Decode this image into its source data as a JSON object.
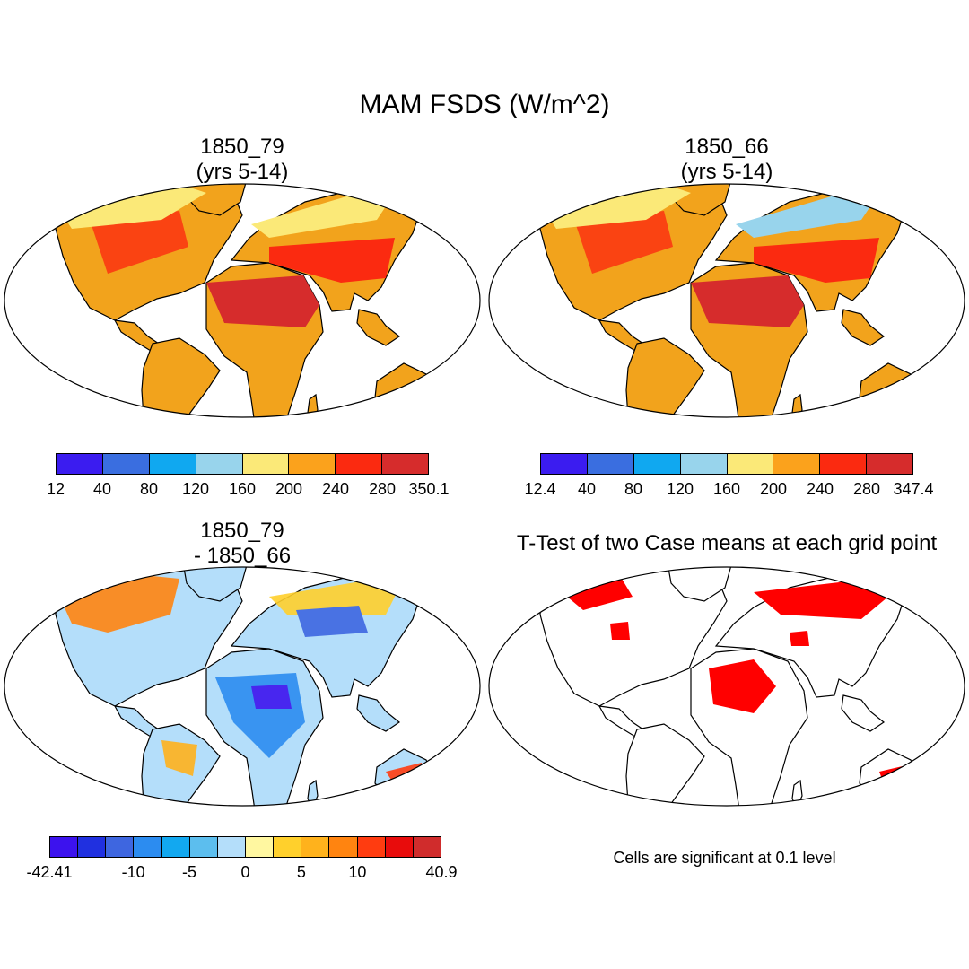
{
  "title": "MAM FSDS (W/m^2)",
  "panels": {
    "top_left": {
      "title_line1": "1850_79",
      "title_line2": "(yrs 5-14)"
    },
    "top_right": {
      "title_line1": "1850_66",
      "title_line2": "(yrs 5-14)"
    },
    "bottom_left": {
      "title_line1": "1850_79",
      "title_line2": "- 1850_66"
    },
    "bottom_right": {
      "title_line1": "T-Test of two Case means at each grid point"
    }
  },
  "colorbars": {
    "top_left": {
      "labels": [
        "12",
        "40",
        "80",
        "120",
        "160",
        "200",
        "240",
        "280",
        "350.1"
      ],
      "colors": [
        "#3b1cf0",
        "#3a6ee0",
        "#10a8f0",
        "#98d4ec",
        "#fbe978",
        "#fba21c",
        "#fb2a10",
        "#d62c2c"
      ]
    },
    "top_right": {
      "labels": [
        "12.4",
        "40",
        "80",
        "120",
        "160",
        "200",
        "240",
        "280",
        "347.4"
      ],
      "colors": [
        "#3b1cf0",
        "#3a6ee0",
        "#10a8f0",
        "#98d4ec",
        "#fbe978",
        "#fba21c",
        "#fb2a10",
        "#d62c2c"
      ]
    },
    "bottom_left": {
      "labels": [
        "-42.41",
        "-10",
        "-5",
        "0",
        "5",
        "10",
        "40.9"
      ],
      "colors": [
        "#3c12ee",
        "#2030e0",
        "#3e66e0",
        "#2c8cf0",
        "#12a8f0",
        "#5cbeee",
        "#b4defa",
        "#fff7a0",
        "#ffd02c",
        "#ffb21c",
        "#ff8410",
        "#ff3c10",
        "#e80c0c",
        "#d02c2c"
      ]
    }
  },
  "significance_note": "Cells are significant at 0.1 level",
  "colors": {
    "significant": "#ff0000",
    "outline": "#000000"
  }
}
